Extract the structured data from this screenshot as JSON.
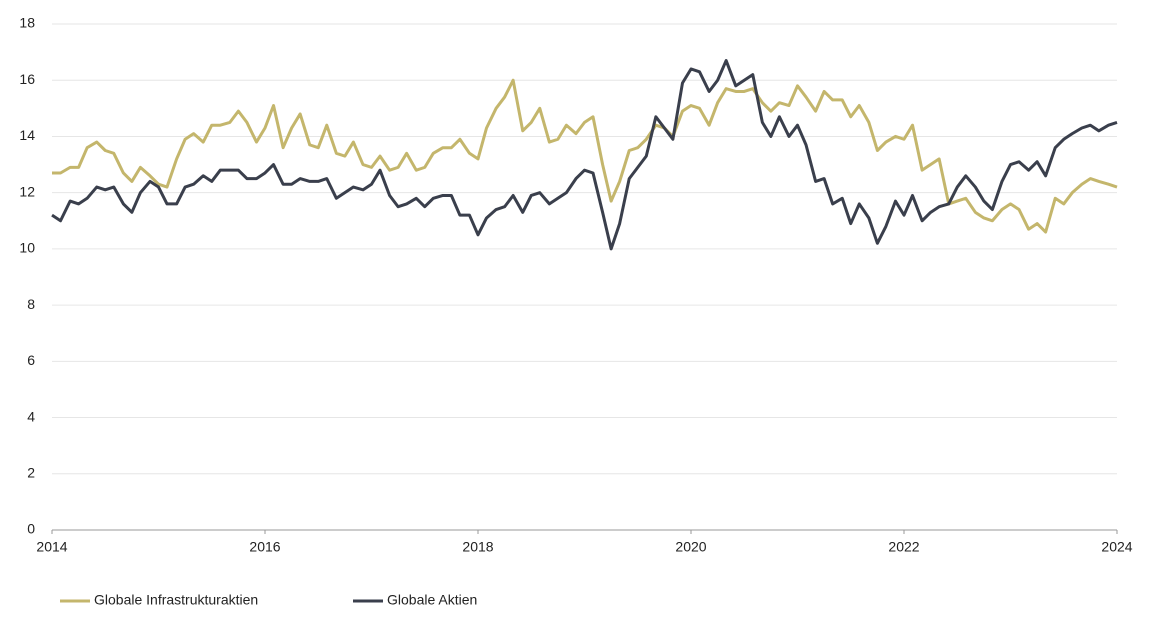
{
  "chart_data": {
    "type": "line",
    "x": [
      2014,
      2014.08,
      2014.17,
      2014.25,
      2014.33,
      2014.42,
      2014.5,
      2014.58,
      2014.67,
      2014.75,
      2014.83,
      2014.92,
      2015,
      2015.08,
      2015.17,
      2015.25,
      2015.33,
      2015.42,
      2015.5,
      2015.58,
      2015.67,
      2015.75,
      2015.83,
      2015.92,
      2016,
      2016.08,
      2016.17,
      2016.25,
      2016.33,
      2016.42,
      2016.5,
      2016.58,
      2016.67,
      2016.75,
      2016.83,
      2016.92,
      2017,
      2017.08,
      2017.17,
      2017.25,
      2017.33,
      2017.42,
      2017.5,
      2017.58,
      2017.67,
      2017.75,
      2017.83,
      2017.92,
      2018,
      2018.08,
      2018.17,
      2018.25,
      2018.33,
      2018.42,
      2018.5,
      2018.58,
      2018.67,
      2018.75,
      2018.83,
      2018.92,
      2019,
      2019.08,
      2019.17,
      2019.25,
      2019.33,
      2019.42,
      2019.5,
      2019.58,
      2019.67,
      2019.75,
      2019.83,
      2019.92,
      2020,
      2020.08,
      2020.17,
      2020.25,
      2020.33,
      2020.42,
      2020.5,
      2020.58,
      2020.67,
      2020.75,
      2020.83,
      2020.92,
      2021,
      2021.08,
      2021.17,
      2021.25,
      2021.33,
      2021.42,
      2021.5,
      2021.58,
      2021.67,
      2021.75,
      2021.83,
      2021.92,
      2022,
      2022.08,
      2022.17,
      2022.25,
      2022.33,
      2022.42,
      2022.5,
      2022.58,
      2022.67,
      2022.75,
      2022.83,
      2022.92,
      2023,
      2023.08,
      2023.17,
      2023.25,
      2023.33,
      2023.42,
      2023.5,
      2023.58,
      2023.67,
      2023.75,
      2023.83,
      2023.92,
      2024
    ],
    "series": [
      {
        "name": "Globale Infrastrukturaktien",
        "color": "#c4b66c",
        "values": [
          12.7,
          12.7,
          12.9,
          12.9,
          13.6,
          13.8,
          13.5,
          13.4,
          12.7,
          12.4,
          12.9,
          12.6,
          12.3,
          12.2,
          13.2,
          13.9,
          14.1,
          13.8,
          14.4,
          14.4,
          14.5,
          14.9,
          14.5,
          13.8,
          14.3,
          15.1,
          13.6,
          14.3,
          14.8,
          13.7,
          13.6,
          14.4,
          13.4,
          13.3,
          13.8,
          13.0,
          12.9,
          13.3,
          12.8,
          12.9,
          13.4,
          12.8,
          12.9,
          13.4,
          13.6,
          13.6,
          13.9,
          13.4,
          13.2,
          14.3,
          15.0,
          15.4,
          16.0,
          14.2,
          14.5,
          15.0,
          13.8,
          13.9,
          14.4,
          14.1,
          14.5,
          14.7,
          13.0,
          11.7,
          12.4,
          13.5,
          13.6,
          13.9,
          14.4,
          14.3,
          14.0,
          14.9,
          15.1,
          15.0,
          14.4,
          15.2,
          15.7,
          15.6,
          15.6,
          15.7,
          15.2,
          14.9,
          15.2,
          15.1,
          15.8,
          15.4,
          14.9,
          15.6,
          15.3,
          15.3,
          14.7,
          15.1,
          14.5,
          13.5,
          13.8,
          14.0,
          13.9,
          14.4,
          12.8,
          13.0,
          13.2,
          11.6,
          11.7,
          11.8,
          11.3,
          11.1,
          11.0,
          11.4,
          11.6,
          11.4,
          10.7,
          10.9,
          10.6,
          11.8,
          11.6,
          12.0,
          12.3,
          12.5,
          12.4,
          12.3,
          12.2
        ]
      },
      {
        "name": "Globale Aktien",
        "color": "#3a3f4c",
        "values": [
          11.2,
          11.0,
          11.7,
          11.6,
          11.8,
          12.2,
          12.1,
          12.2,
          11.6,
          11.3,
          12.0,
          12.4,
          12.2,
          11.6,
          11.6,
          12.2,
          12.3,
          12.6,
          12.4,
          12.8,
          12.8,
          12.8,
          12.5,
          12.5,
          12.7,
          13.0,
          12.3,
          12.3,
          12.5,
          12.4,
          12.4,
          12.5,
          11.8,
          12.0,
          12.2,
          12.1,
          12.3,
          12.8,
          11.9,
          11.5,
          11.6,
          11.8,
          11.5,
          11.8,
          11.9,
          11.9,
          11.2,
          11.2,
          10.5,
          11.1,
          11.4,
          11.5,
          11.9,
          11.3,
          11.9,
          12.0,
          11.6,
          11.8,
          12.0,
          12.5,
          12.8,
          12.7,
          11.3,
          10.0,
          10.9,
          12.5,
          12.9,
          13.3,
          14.7,
          14.3,
          13.9,
          15.9,
          16.4,
          16.3,
          15.6,
          16.0,
          16.7,
          15.8,
          16.0,
          16.2,
          14.5,
          14.0,
          14.7,
          14.0,
          14.4,
          13.7,
          12.4,
          12.5,
          11.6,
          11.8,
          10.9,
          11.6,
          11.1,
          10.2,
          10.8,
          11.7,
          11.2,
          11.9,
          11.0,
          11.3,
          11.5,
          11.6,
          12.2,
          12.6,
          12.2,
          11.7,
          11.4,
          12.4,
          13.0,
          13.1,
          12.8,
          13.1,
          12.6,
          13.6,
          13.9,
          14.1,
          14.3,
          14.4,
          14.2,
          14.4,
          14.5
        ]
      }
    ],
    "xlim": [
      2014,
      2024
    ],
    "xticks": [
      2014,
      2016,
      2018,
      2020,
      2022,
      2024
    ],
    "ylim": [
      0,
      18
    ],
    "yticks": [
      0,
      2,
      4,
      6,
      8,
      10,
      12,
      14,
      16,
      18
    ],
    "grid": true,
    "legend": "bottom"
  }
}
